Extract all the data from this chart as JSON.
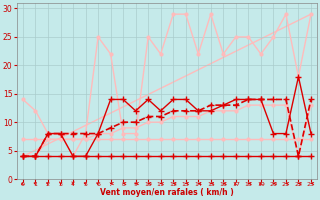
{
  "background_color": "#c5eaea",
  "grid_color": "#aacccc",
  "xlabel": "Vent moyen/en rafales ( km/h )",
  "x_ticks": [
    0,
    1,
    2,
    3,
    4,
    5,
    6,
    7,
    8,
    9,
    10,
    11,
    12,
    13,
    14,
    15,
    16,
    17,
    18,
    19,
    20,
    21,
    22,
    23
  ],
  "xlim": [
    -0.5,
    23.5
  ],
  "ylim": [
    0,
    31
  ],
  "y_ticks": [
    0,
    5,
    10,
    15,
    20,
    25,
    30
  ],
  "series": [
    {
      "name": "flat_line",
      "x": [
        0,
        1,
        2,
        3,
        4,
        5,
        6,
        7,
        8,
        9,
        10,
        11,
        12,
        13,
        14,
        15,
        16,
        17,
        18,
        19,
        20,
        21,
        22,
        23
      ],
      "y": [
        4,
        4,
        4,
        4,
        4,
        4,
        4,
        4,
        4,
        4,
        4,
        4,
        4,
        4,
        4,
        4,
        4,
        4,
        4,
        4,
        4,
        4,
        4,
        4
      ],
      "color": "#dd0000",
      "lw": 1.0,
      "marker": "+",
      "ms": 4,
      "ls": "-",
      "zorder": 5
    },
    {
      "name": "diagonal_light",
      "x": [
        0,
        23
      ],
      "y": [
        4,
        29
      ],
      "color": "#ffbbbb",
      "lw": 1.0,
      "marker": null,
      "ms": 0,
      "ls": "-",
      "zorder": 1
    },
    {
      "name": "light_zigzag_upper",
      "x": [
        0,
        1,
        2,
        3,
        4,
        5,
        6,
        7,
        8,
        9,
        10,
        11,
        12,
        13,
        14,
        15,
        16,
        17,
        18,
        19,
        20,
        21,
        22,
        23
      ],
      "y": [
        14,
        12,
        8,
        8,
        4,
        8,
        25,
        22,
        8,
        8,
        25,
        22,
        29,
        29,
        22,
        29,
        22,
        25,
        25,
        22,
        25,
        29,
        18,
        29
      ],
      "color": "#ffbbbb",
      "lw": 1.0,
      "marker": "o",
      "ms": 2,
      "ls": "-",
      "zorder": 2
    },
    {
      "name": "dark_zigzag",
      "x": [
        0,
        1,
        2,
        3,
        4,
        5,
        6,
        7,
        8,
        9,
        10,
        11,
        12,
        13,
        14,
        15,
        16,
        17,
        18,
        19,
        20,
        21,
        22,
        23
      ],
      "y": [
        4,
        4,
        8,
        8,
        4,
        4,
        8,
        14,
        14,
        12,
        14,
        12,
        14,
        14,
        12,
        12,
        13,
        14,
        14,
        14,
        8,
        8,
        18,
        8
      ],
      "color": "#dd0000",
      "lw": 1.0,
      "marker": "+",
      "ms": 4,
      "ls": "-",
      "zorder": 4
    },
    {
      "name": "smooth_rising_dashed",
      "x": [
        0,
        1,
        2,
        3,
        4,
        5,
        6,
        7,
        8,
        9,
        10,
        11,
        12,
        13,
        14,
        15,
        16,
        17,
        18,
        19,
        20,
        21,
        22,
        23
      ],
      "y": [
        4,
        4,
        8,
        8,
        8,
        8,
        8,
        9,
        10,
        10,
        11,
        11,
        12,
        12,
        12,
        13,
        13,
        13,
        14,
        14,
        14,
        14,
        4,
        14
      ],
      "color": "#dd0000",
      "lw": 1.2,
      "marker": "+",
      "ms": 4,
      "ls": "--",
      "zorder": 3
    },
    {
      "name": "light_rising_smooth",
      "x": [
        0,
        1,
        2,
        3,
        4,
        5,
        6,
        7,
        8,
        9,
        10,
        11,
        12,
        13,
        14,
        15,
        16,
        17,
        18,
        19,
        20,
        21,
        22,
        23
      ],
      "y": [
        4,
        4,
        7,
        7,
        7,
        7,
        8,
        8,
        9,
        9,
        10,
        10,
        11,
        11,
        11,
        12,
        12,
        12,
        13,
        13,
        13,
        13,
        4,
        13
      ],
      "color": "#ffbbbb",
      "lw": 1.0,
      "marker": "o",
      "ms": 2,
      "ls": "-",
      "zorder": 2
    },
    {
      "name": "flat_light_line",
      "x": [
        0,
        1,
        2,
        3,
        4,
        5,
        6,
        7,
        8,
        9,
        10,
        11,
        12,
        13,
        14,
        15,
        16,
        17,
        18,
        19,
        20,
        21,
        22,
        23
      ],
      "y": [
        7,
        7,
        7,
        7,
        7,
        7,
        7,
        7,
        7,
        7,
        7,
        7,
        7,
        7,
        7,
        7,
        7,
        7,
        7,
        7,
        7,
        7,
        7,
        7
      ],
      "color": "#ffbbbb",
      "lw": 1.0,
      "marker": "o",
      "ms": 2,
      "ls": "-",
      "zorder": 2
    }
  ],
  "wind_symbols": {
    "x": [
      0,
      1,
      2,
      3,
      4,
      5,
      6,
      7,
      8,
      9,
      10,
      11,
      12,
      13,
      14,
      15,
      16,
      17,
      18,
      19,
      20,
      21,
      22,
      23
    ],
    "angles_deg": [
      315,
      225,
      225,
      0,
      0,
      225,
      225,
      270,
      270,
      270,
      270,
      270,
      270,
      270,
      270,
      270,
      270,
      315,
      270,
      315,
      270,
      270,
      270,
      270
    ],
    "color": "#dd0000"
  }
}
